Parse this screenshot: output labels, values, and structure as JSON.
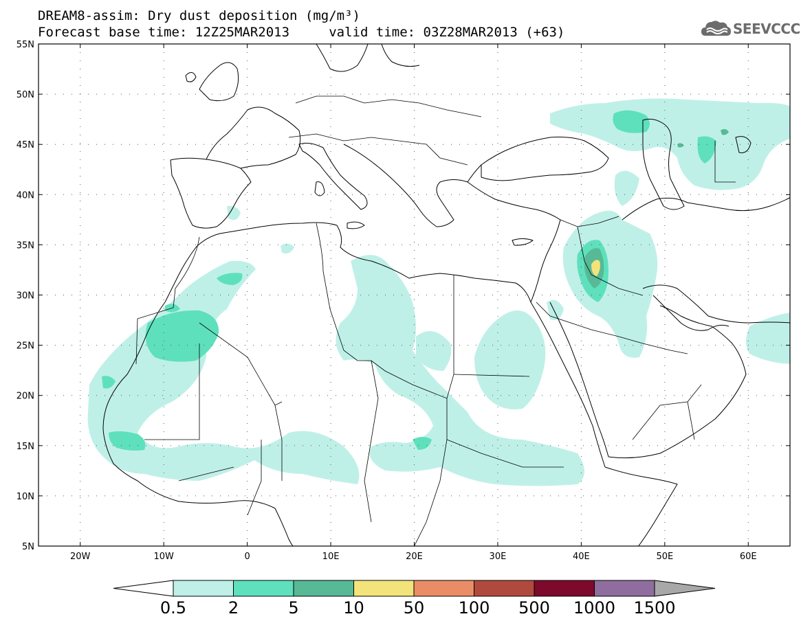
{
  "title": {
    "line1": "DREAM8-assim: Dry dust deposition (mg/m³)",
    "line2": "Forecast base time: 12Z25MAR2013     valid time: 03Z28MAR2013 (+63)"
  },
  "logo": {
    "text": "SEEVCCC",
    "icon": "cloud-icon"
  },
  "map": {
    "region": "North Africa, Europe and Middle East",
    "lon_range": [
      -25,
      65
    ],
    "lat_range": [
      5,
      55
    ],
    "lon_ticks": [
      {
        "value": -20,
        "label": "20W"
      },
      {
        "value": -10,
        "label": "10W"
      },
      {
        "value": 0,
        "label": "0"
      },
      {
        "value": 10,
        "label": "10E"
      },
      {
        "value": 20,
        "label": "20E"
      },
      {
        "value": 30,
        "label": "30E"
      },
      {
        "value": 40,
        "label": "40E"
      },
      {
        "value": 50,
        "label": "50E"
      },
      {
        "value": 60,
        "label": "60E"
      }
    ],
    "lat_ticks": [
      {
        "value": 55,
        "label": "55N"
      },
      {
        "value": 50,
        "label": "50N"
      },
      {
        "value": 45,
        "label": "45N"
      },
      {
        "value": 40,
        "label": "40N"
      },
      {
        "value": 35,
        "label": "35N"
      },
      {
        "value": 30,
        "label": "30N"
      },
      {
        "value": 25,
        "label": "25N"
      },
      {
        "value": 20,
        "label": "20N"
      },
      {
        "value": 15,
        "label": "15N"
      },
      {
        "value": 10,
        "label": "10N"
      },
      {
        "value": 5,
        "label": "5N"
      }
    ],
    "grid": "dotted"
  },
  "colorbar": {
    "labels": [
      "0.5",
      "2",
      "5",
      "10",
      "50",
      "100",
      "500",
      "1000",
      "1500"
    ],
    "colors": [
      "#bff0e8",
      "#5ee0bd",
      "#57b996",
      "#f2e47a",
      "#ea8d66",
      "#b04a3e",
      "#7d0a2c",
      "#8f6d9e"
    ],
    "under_color": "#ffffff",
    "over_color": "#a8a8a8"
  }
}
